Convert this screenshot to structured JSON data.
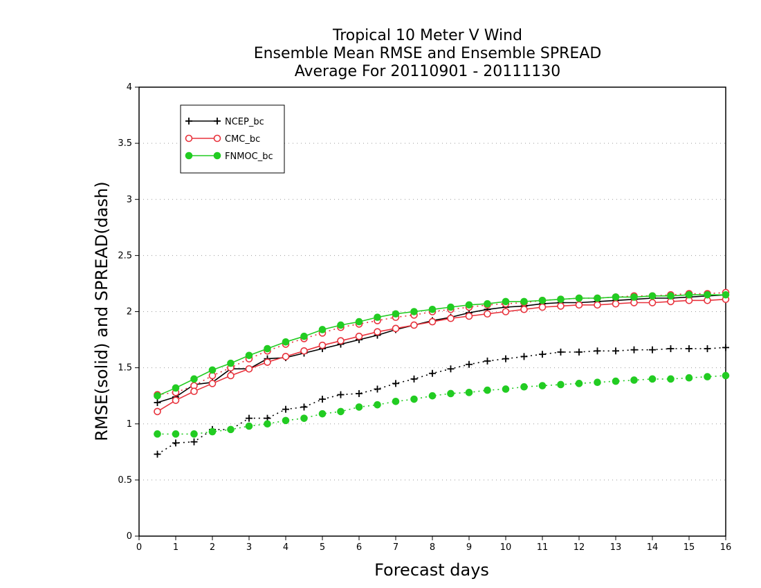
{
  "chart_data": {
    "type": "line",
    "title": [
      "Tropical 10 Meter V Wind",
      "Ensemble Mean RMSE and Ensemble SPREAD",
      "Average For 20110901 - 20111130"
    ],
    "xlabel": "Forecast days",
    "ylabel": "RMSE(solid) and SPREAD(dash)",
    "xlim": [
      0,
      16
    ],
    "ylim": [
      0,
      4
    ],
    "xticks": [
      "0",
      "1",
      "2",
      "3",
      "4",
      "5",
      "6",
      "7",
      "8",
      "9",
      "10",
      "11",
      "12",
      "13",
      "14",
      "15",
      "16"
    ],
    "yticks": [
      "0",
      "0.5",
      "1",
      "1.5",
      "2",
      "2.5",
      "3",
      "3.5",
      "4"
    ],
    "grid": "horizontal dotted",
    "legend_placement": "top-left",
    "x": [
      0.5,
      1,
      1.5,
      2,
      2.5,
      3,
      3.5,
      4,
      4.5,
      5,
      5.5,
      6,
      6.5,
      7,
      7.5,
      8,
      8.5,
      9,
      9.5,
      10,
      10.5,
      11,
      11.5,
      12,
      12.5,
      13,
      13.5,
      14,
      14.5,
      15,
      15.5,
      16
    ],
    "series": [
      {
        "name": "NCEP_bc",
        "color": "#000000",
        "marker": "plus",
        "rmse": [
          1.19,
          1.24,
          1.35,
          1.37,
          1.49,
          1.49,
          1.58,
          1.59,
          1.63,
          1.67,
          1.71,
          1.75,
          1.79,
          1.84,
          1.88,
          1.92,
          1.95,
          1.99,
          2.02,
          2.04,
          2.05,
          2.07,
          2.08,
          2.08,
          2.09,
          2.1,
          2.11,
          2.12,
          2.12,
          2.13,
          2.14,
          2.15
        ],
        "spread": [
          0.73,
          0.83,
          0.84,
          0.95,
          0.95,
          1.05,
          1.05,
          1.13,
          1.15,
          1.22,
          1.26,
          1.27,
          1.31,
          1.36,
          1.4,
          1.45,
          1.49,
          1.53,
          1.56,
          1.58,
          1.6,
          1.62,
          1.64,
          1.64,
          1.65,
          1.65,
          1.66,
          1.66,
          1.67,
          1.67,
          1.67,
          1.68
        ]
      },
      {
        "name": "CMC_bc",
        "color": "#e8323c",
        "marker": "open-circle",
        "rmse": [
          1.11,
          1.21,
          1.29,
          1.36,
          1.43,
          1.49,
          1.55,
          1.6,
          1.65,
          1.7,
          1.74,
          1.78,
          1.82,
          1.85,
          1.88,
          1.91,
          1.94,
          1.96,
          1.98,
          2.0,
          2.02,
          2.04,
          2.05,
          2.06,
          2.06,
          2.07,
          2.08,
          2.08,
          2.09,
          2.1,
          2.1,
          2.11
        ],
        "spread": [
          1.26,
          1.28,
          1.34,
          1.43,
          1.5,
          1.58,
          1.65,
          1.71,
          1.76,
          1.81,
          1.86,
          1.89,
          1.92,
          1.95,
          1.97,
          2.0,
          2.02,
          2.04,
          2.06,
          2.07,
          2.08,
          2.1,
          2.11,
          2.12,
          2.12,
          2.13,
          2.14,
          2.14,
          2.15,
          2.16,
          2.16,
          2.17
        ]
      },
      {
        "name": "FNMOC_bc",
        "color": "#22cc22",
        "marker": "filled-circle",
        "rmse": [
          1.25,
          1.32,
          1.4,
          1.48,
          1.54,
          1.61,
          1.67,
          1.73,
          1.78,
          1.84,
          1.88,
          1.91,
          1.95,
          1.98,
          2.0,
          2.02,
          2.04,
          2.06,
          2.07,
          2.09,
          2.09,
          2.1,
          2.11,
          2.12,
          2.12,
          2.13,
          2.13,
          2.14,
          2.14,
          2.15,
          2.15,
          2.15
        ],
        "spread": [
          0.91,
          0.91,
          0.91,
          0.93,
          0.95,
          0.98,
          1.0,
          1.03,
          1.05,
          1.09,
          1.11,
          1.15,
          1.17,
          1.2,
          1.22,
          1.25,
          1.27,
          1.28,
          1.3,
          1.31,
          1.33,
          1.34,
          1.35,
          1.36,
          1.37,
          1.38,
          1.39,
          1.4,
          1.4,
          1.41,
          1.42,
          1.43
        ]
      }
    ]
  }
}
